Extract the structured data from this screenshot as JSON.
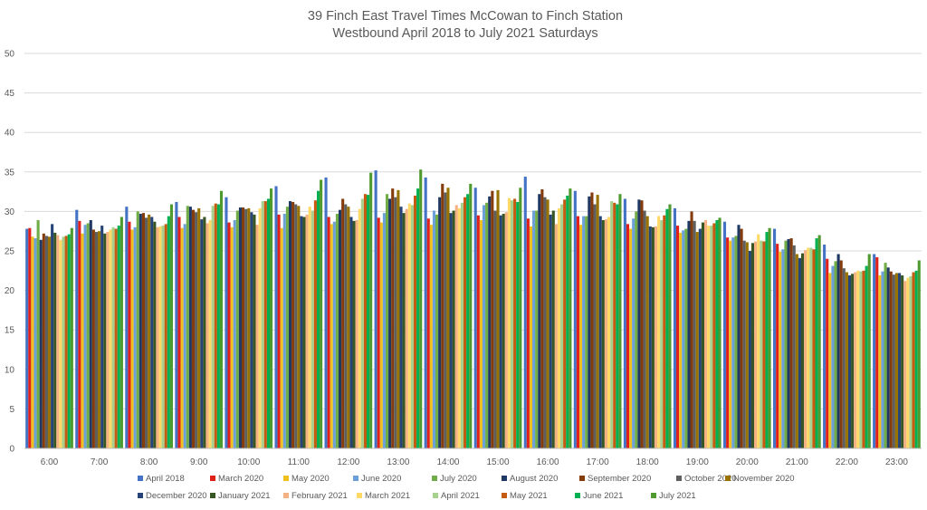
{
  "chart_data": {
    "type": "bar",
    "title": "39 Finch East Travel Times McCowan to Finch Station",
    "subtitle": "Westbound April 2018 to July 2021 Saturdays",
    "xlabel": "",
    "ylabel": "",
    "ylim": [
      0,
      50
    ],
    "yticks": [
      0,
      5,
      10,
      15,
      20,
      25,
      30,
      35,
      40,
      45,
      50
    ],
    "grid": true,
    "legend_position": "bottom",
    "categories": [
      "6:00",
      "7:00",
      "8:00",
      "9:00",
      "10:00",
      "11:00",
      "12:00",
      "13:00",
      "14:00",
      "15:00",
      "16:00",
      "17:00",
      "18:00",
      "19:00",
      "20:00",
      "21:00",
      "22:00",
      "23:00"
    ],
    "series": [
      {
        "name": "April 2018",
        "color": "#4472C4",
        "values": [
          27.8,
          30.2,
          30.6,
          31.2,
          31.8,
          33.2,
          34.3,
          35.2,
          34.3,
          33.0,
          34.4,
          32.6,
          31.6,
          30.4,
          28.7,
          27.8,
          25.8,
          24.6
        ]
      },
      {
        "name": "March 2020",
        "color": "#E0201B",
        "values": [
          27.9,
          28.8,
          28.7,
          29.3,
          28.6,
          29.6,
          29.3,
          29.2,
          29.1,
          29.5,
          29.1,
          29.4,
          28.4,
          28.2,
          26.7,
          25.9,
          24.0,
          24.2
        ]
      },
      {
        "name": "May 2020",
        "color": "#F0C020",
        "values": [
          26.8,
          27.2,
          27.7,
          27.9,
          28.0,
          27.9,
          28.4,
          28.6,
          28.3,
          28.9,
          28.1,
          28.3,
          27.8,
          27.3,
          26.3,
          24.9,
          22.2,
          21.9
        ]
      },
      {
        "name": "June 2020",
        "color": "#6CA0D8",
        "values": [
          26.6,
          28.3,
          28.0,
          28.4,
          28.9,
          29.7,
          28.7,
          29.8,
          30.1,
          30.8,
          30.1,
          29.4,
          29.1,
          27.6,
          26.7,
          25.2,
          23.1,
          22.4
        ]
      },
      {
        "name": "July 2020",
        "color": "#70AD47",
        "values": [
          28.9,
          28.5,
          30.0,
          30.7,
          30.1,
          30.6,
          29.7,
          32.2,
          29.6,
          31.1,
          30.1,
          29.4,
          30.0,
          27.8,
          26.9,
          26.3,
          23.7,
          23.5
        ]
      },
      {
        "name": "August 2020",
        "color": "#1F3864",
        "values": [
          26.4,
          28.9,
          29.7,
          30.6,
          30.5,
          31.3,
          30.2,
          31.6,
          31.8,
          31.9,
          32.2,
          31.9,
          31.5,
          28.8,
          28.3,
          26.5,
          24.6,
          22.9
        ]
      },
      {
        "name": "September 2020",
        "color": "#843C0C",
        "values": [
          27.2,
          27.7,
          29.8,
          30.2,
          30.5,
          31.2,
          31.6,
          32.9,
          33.5,
          32.6,
          32.8,
          32.4,
          31.4,
          30.0,
          27.8,
          26.6,
          23.8,
          22.4
        ]
      },
      {
        "name": "October 2020",
        "color": "#5F5F5F",
        "values": [
          26.9,
          27.4,
          29.2,
          29.9,
          30.3,
          30.9,
          30.9,
          31.8,
          32.4,
          30.1,
          31.8,
          30.9,
          30.1,
          28.8,
          26.3,
          25.7,
          22.8,
          22.0
        ]
      },
      {
        "name": "November 2020",
        "color": "#997300",
        "values": [
          26.8,
          27.5,
          29.6,
          30.4,
          30.4,
          30.7,
          30.6,
          32.7,
          33.0,
          32.7,
          31.5,
          32.1,
          29.4,
          27.4,
          26.1,
          24.6,
          22.3,
          22.2
        ]
      },
      {
        "name": "December 2020",
        "color": "#264478",
        "values": [
          28.4,
          28.2,
          29.3,
          29.0,
          29.9,
          29.4,
          29.3,
          30.6,
          29.8,
          29.5,
          29.6,
          29.4,
          28.1,
          27.8,
          25.0,
          24.1,
          21.9,
          22.2
        ]
      },
      {
        "name": "January 2021",
        "color": "#375623",
        "values": [
          27.3,
          27.2,
          28.7,
          29.3,
          29.6,
          29.3,
          28.8,
          29.8,
          30.1,
          29.7,
          30.1,
          28.9,
          28.0,
          28.6,
          26.0,
          24.7,
          22.1,
          21.9
        ]
      },
      {
        "name": "February 2021",
        "color": "#F4B183",
        "values": [
          27.0,
          27.4,
          28.0,
          28.5,
          28.3,
          29.6,
          28.9,
          30.3,
          30.8,
          29.9,
          28.4,
          29.0,
          28.1,
          28.9,
          26.2,
          25.1,
          22.3,
          21.2
        ]
      },
      {
        "name": "March 2021",
        "color": "#FFD966",
        "values": [
          26.4,
          27.7,
          28.1,
          28.9,
          30.4,
          30.6,
          30.3,
          31.0,
          30.4,
          31.7,
          30.4,
          29.3,
          29.4,
          28.2,
          27.1,
          25.4,
          22.5,
          21.6
        ]
      },
      {
        "name": "April 2021",
        "color": "#A9D18E",
        "values": [
          26.8,
          28.0,
          28.2,
          30.7,
          31.3,
          30.1,
          31.6,
          30.8,
          31.1,
          31.4,
          30.9,
          31.3,
          28.9,
          28.2,
          26.3,
          25.4,
          22.4,
          21.8
        ]
      },
      {
        "name": "May 2021",
        "color": "#C55A11",
        "values": [
          26.9,
          27.8,
          28.4,
          31.0,
          31.3,
          31.4,
          32.2,
          32.0,
          31.8,
          31.6,
          31.5,
          31.1,
          29.5,
          28.5,
          26.2,
          25.2,
          22.5,
          22.3
        ]
      },
      {
        "name": "June 2021",
        "color": "#00B050",
        "values": [
          27.1,
          28.2,
          29.4,
          30.9,
          31.6,
          32.6,
          32.1,
          32.9,
          32.2,
          31.2,
          32.0,
          30.9,
          30.3,
          28.9,
          27.4,
          26.6,
          23.1,
          22.5
        ]
      },
      {
        "name": "July 2021",
        "color": "#4E9A2E",
        "values": [
          27.9,
          29.3,
          30.9,
          32.6,
          32.9,
          34.0,
          34.9,
          35.3,
          33.5,
          33.0,
          32.9,
          32.2,
          30.9,
          29.2,
          27.9,
          27.0,
          24.6,
          23.8
        ]
      }
    ]
  }
}
